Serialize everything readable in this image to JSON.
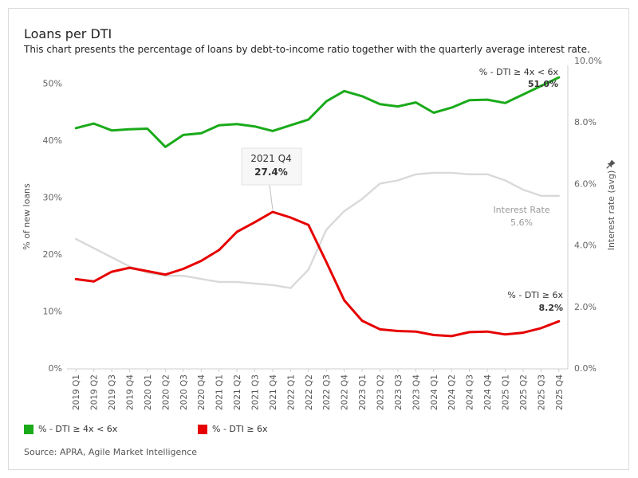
{
  "header": {
    "title": "Loans per DTI",
    "subtitle": "This chart presents the percentage of loans by debt-to-income ratio together with the quarterly average interest rate."
  },
  "footer": {
    "source": "Source: APRA, Agile Market Intelligence"
  },
  "colors": {
    "green": "#1aaa1a",
    "red": "#e60000",
    "grey": "#d9d9d9"
  },
  "legend": [
    {
      "label": "% - DTI ≥ 4x < 6x",
      "color": "#1aaa1a"
    },
    {
      "label": "% - DTI ≥ 6x",
      "color": "#e60000"
    }
  ],
  "chart_data": {
    "type": "line",
    "title": "Loans per DTI",
    "ylabel": "% of new loans",
    "y2label": "Interest rate (avg)",
    "ylim": [
      0,
      52
    ],
    "y2lim": [
      0,
      10
    ],
    "yticks": [
      "0%",
      "10%",
      "20%",
      "30%",
      "40%",
      "50%"
    ],
    "y2ticks": [
      "0.0%",
      "2.0%",
      "4.0%",
      "6.0%",
      "8.0%",
      "10.0%"
    ],
    "categories": [
      "2019 Q1",
      "2019 Q2",
      "2019 Q3",
      "2019 Q4",
      "2020 Q1",
      "2020 Q2",
      "2020 Q3",
      "2020 Q4",
      "2021 Q1",
      "2021 Q2",
      "2021 Q3",
      "2021 Q4",
      "2022 Q1",
      "2022 Q2",
      "2022 Q3",
      "2022 Q4",
      "2023 Q1",
      "2023 Q2",
      "2023 Q3",
      "2023 Q4",
      "2024 Q1",
      "2024 Q2",
      "2024 Q3",
      "2024 Q4",
      "2025 Q1",
      "2025 Q2",
      "2025 Q3",
      "2025 Q4"
    ],
    "series": [
      {
        "name": "% - DTI ≥ 4x < 6x",
        "axis": "left",
        "color": "#1aaa1a",
        "values": [
          42.1,
          42.9,
          41.7,
          41.9,
          42.0,
          38.8,
          40.9,
          41.2,
          42.6,
          42.8,
          42.4,
          41.6,
          42.6,
          43.6,
          46.8,
          48.6,
          47.7,
          46.3,
          45.9,
          46.6,
          44.8,
          45.7,
          47.0,
          47.1,
          46.5,
          48.0,
          49.5,
          51.0
        ]
      },
      {
        "name": "% - DTI ≥ 6x",
        "axis": "left",
        "color": "#e60000",
        "values": [
          15.6,
          15.2,
          16.9,
          17.6,
          17.0,
          16.4,
          17.4,
          18.8,
          20.7,
          23.9,
          25.6,
          27.4,
          26.4,
          25.1,
          18.6,
          11.9,
          8.3,
          6.8,
          6.5,
          6.4,
          5.8,
          5.6,
          6.3,
          6.4,
          5.9,
          6.2,
          7.0,
          8.2
        ]
      },
      {
        "name": "Interest Rate",
        "axis": "right",
        "color": "#d9d9d9",
        "values": [
          4.2,
          3.9,
          3.6,
          3.3,
          3.1,
          3.0,
          3.0,
          2.9,
          2.8,
          2.8,
          2.75,
          2.7,
          2.6,
          3.2,
          4.5,
          5.1,
          5.5,
          6.0,
          6.1,
          6.3,
          6.35,
          6.35,
          6.3,
          6.3,
          6.1,
          5.8,
          5.6,
          5.6
        ]
      }
    ],
    "annotations": [
      {
        "series": 1,
        "index": 11,
        "period": "2021 Q4",
        "value": "27.4%"
      },
      {
        "series": 0,
        "index": 27,
        "name": "% - DTI ≥ 4x < 6x",
        "value": "51.0%"
      },
      {
        "series": 1,
        "index": 27,
        "name": "% - DTI ≥ 6x",
        "value": "8.2%"
      },
      {
        "series": 2,
        "index": 27,
        "name": "Interest Rate",
        "value": "5.6%"
      }
    ]
  }
}
